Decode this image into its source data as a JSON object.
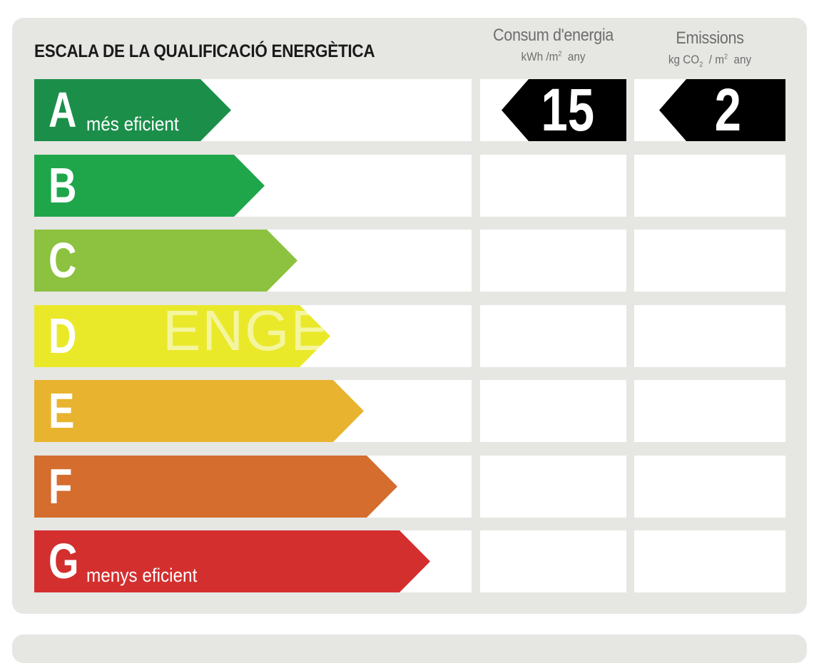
{
  "title": "ESCALA DE LA QUALIFICACIÓ ENERGÈTICA",
  "consum": {
    "heading": "Consum d'energia",
    "unit_pre": "kWh /m",
    "unit_sup": "2",
    "unit_post": "any",
    "value": "15"
  },
  "emissions": {
    "heading": "Emissions",
    "unit_pre": "kg CO",
    "unit_sub": "2",
    "unit_mid": "/ m",
    "unit_sup": "2",
    "unit_post": "any",
    "value": "2"
  },
  "watermark": "ENGE",
  "ratings": [
    {
      "letter": "A",
      "label": "més eficient",
      "color": "#1b8f4a"
    },
    {
      "letter": "B",
      "label": "",
      "color": "#20a64a"
    },
    {
      "letter": "C",
      "label": "",
      "color": "#8cc23f"
    },
    {
      "letter": "D",
      "label": "",
      "color": "#e9e92a"
    },
    {
      "letter": "E",
      "label": "",
      "color": "#e8b32e"
    },
    {
      "letter": "F",
      "label": "",
      "color": "#d46d2e"
    },
    {
      "letter": "G",
      "label": "menys eficient",
      "color": "#d32f2f"
    }
  ],
  "current_rating": "A"
}
